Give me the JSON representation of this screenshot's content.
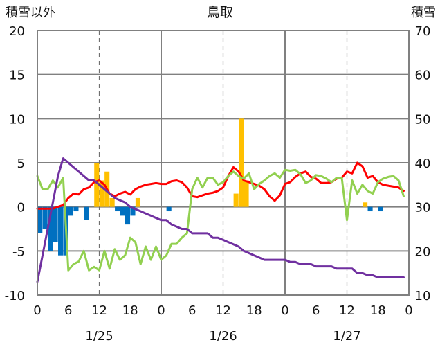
{
  "chart_data": {
    "type": "bar+line",
    "title": "鳥取",
    "left_axis_title": "積雪以外",
    "right_axis_title": "積雪",
    "y_left": {
      "min": -10,
      "max": 20,
      "ticks": [
        "-10",
        "-5",
        "0",
        "5",
        "10",
        "15",
        "20"
      ]
    },
    "y_right": {
      "min": 10,
      "max": 70,
      "ticks": [
        "10",
        "20",
        "30",
        "40",
        "50",
        "60",
        "70"
      ]
    },
    "x": {
      "min": 0,
      "max": 72,
      "step_hours": 1
    },
    "x_tick_labels": [
      {
        "h": 0,
        "label": "0"
      },
      {
        "h": 6,
        "label": "6"
      },
      {
        "h": 12,
        "label": "12"
      },
      {
        "h": 18,
        "label": "18"
      },
      {
        "h": 24,
        "label": "0"
      },
      {
        "h": 30,
        "label": "6"
      },
      {
        "h": 36,
        "label": "12"
      },
      {
        "h": 42,
        "label": "18"
      },
      {
        "h": 48,
        "label": "0"
      },
      {
        "h": 54,
        "label": "6"
      },
      {
        "h": 60,
        "label": "12"
      },
      {
        "h": 66,
        "label": "18"
      },
      {
        "h": 72,
        "label": "0"
      }
    ],
    "date_labels": [
      {
        "h": 12,
        "label": "1/25"
      },
      {
        "h": 36,
        "label": "1/26"
      },
      {
        "h": 60,
        "label": "1/27"
      }
    ],
    "gridlines": {
      "solid_at_hours": [
        24,
        48
      ],
      "dashed_at_hours": [
        12,
        36,
        60
      ],
      "solid_at_values": [
        -5,
        0,
        5,
        10,
        15
      ]
    },
    "colors": {
      "bars_positive": "#FFC000",
      "bars_negative": "#0070C0",
      "red_line": "#FF0000",
      "green_line": "#92D050",
      "purple_line": "#7030A0",
      "grid": "#808080",
      "frame": "#808080"
    },
    "series": [
      {
        "kind": "bar",
        "axis": "left",
        "values": [
          [
            0,
            -3
          ],
          [
            1,
            -2.5
          ],
          [
            2,
            -5
          ],
          [
            3,
            -4
          ],
          [
            4,
            -5.5
          ],
          [
            5,
            -5.5
          ],
          [
            6,
            -1
          ],
          [
            7,
            -0.5
          ],
          [
            8,
            0
          ],
          [
            9,
            -1.5
          ],
          [
            10,
            0
          ],
          [
            11,
            5
          ],
          [
            12,
            3
          ],
          [
            13,
            4
          ],
          [
            14,
            1
          ],
          [
            15,
            -0.5
          ],
          [
            16,
            -1
          ],
          [
            17,
            -2
          ],
          [
            18,
            -1
          ],
          [
            19,
            1
          ],
          [
            20,
            0
          ],
          [
            25,
            -0.5
          ],
          [
            38,
            1.5
          ],
          [
            39,
            10
          ],
          [
            40,
            3
          ],
          [
            63,
            0.5
          ],
          [
            64,
            -0.5
          ],
          [
            66,
            -0.5
          ]
        ]
      },
      {
        "kind": "line",
        "color_key": "red_line",
        "axis": "left",
        "values": [
          [
            0,
            -0.2
          ],
          [
            3,
            -0.2
          ],
          [
            5,
            0.2
          ],
          [
            6,
            1
          ],
          [
            7,
            1.5
          ],
          [
            8,
            1.4
          ],
          [
            9,
            2
          ],
          [
            10,
            2.2
          ],
          [
            11,
            2.8
          ],
          [
            12,
            3
          ],
          [
            13,
            2.5
          ],
          [
            14,
            1.5
          ],
          [
            15,
            1.2
          ],
          [
            16,
            1.5
          ],
          [
            17,
            1.7
          ],
          [
            18,
            1.4
          ],
          [
            19,
            2
          ],
          [
            20,
            2.3
          ],
          [
            21,
            2.5
          ],
          [
            22,
            2.6
          ],
          [
            23,
            2.7
          ],
          [
            24,
            2.6
          ],
          [
            25,
            2.6
          ],
          [
            26,
            2.9
          ],
          [
            27,
            3
          ],
          [
            28,
            2.8
          ],
          [
            29,
            2.2
          ],
          [
            30,
            1.2
          ],
          [
            31,
            1.1
          ],
          [
            32,
            1.3
          ],
          [
            33,
            1.5
          ],
          [
            34,
            1.6
          ],
          [
            35,
            1.8
          ],
          [
            36,
            2.2
          ],
          [
            37,
            3.5
          ],
          [
            38,
            4.5
          ],
          [
            39,
            4
          ],
          [
            40,
            3
          ],
          [
            41,
            2.8
          ],
          [
            42,
            2.6
          ],
          [
            43,
            2.4
          ],
          [
            44,
            2
          ],
          [
            45,
            1.2
          ],
          [
            46,
            0.7
          ],
          [
            47,
            1.3
          ],
          [
            48,
            2.6
          ],
          [
            49,
            2.8
          ],
          [
            50,
            3.4
          ],
          [
            51,
            3.8
          ],
          [
            52,
            4
          ],
          [
            53,
            3.4
          ],
          [
            54,
            3.2
          ],
          [
            55,
            2.7
          ],
          [
            56,
            2.7
          ],
          [
            57,
            2.8
          ],
          [
            58,
            3.2
          ],
          [
            59,
            3.3
          ],
          [
            60,
            4
          ],
          [
            61,
            3.8
          ],
          [
            62,
            5
          ],
          [
            63,
            4.6
          ],
          [
            64,
            3.3
          ],
          [
            65,
            3.5
          ],
          [
            66,
            2.8
          ],
          [
            67,
            2.5
          ],
          [
            68,
            2.4
          ],
          [
            69,
            2.3
          ],
          [
            70,
            2.2
          ],
          [
            71,
            1.8
          ]
        ]
      },
      {
        "kind": "line",
        "color_key": "green_line",
        "axis": "left",
        "values": [
          [
            0,
            3.5
          ],
          [
            1,
            2
          ],
          [
            2,
            2
          ],
          [
            3,
            3
          ],
          [
            4,
            2.2
          ],
          [
            5,
            3.3
          ],
          [
            6,
            -7.2
          ],
          [
            7,
            -6.5
          ],
          [
            8,
            -6.2
          ],
          [
            9,
            -5
          ],
          [
            10,
            -7.2
          ],
          [
            11,
            -6.8
          ],
          [
            12,
            -7.2
          ],
          [
            13,
            -5
          ],
          [
            14,
            -7
          ],
          [
            15,
            -4.8
          ],
          [
            16,
            -6
          ],
          [
            17,
            -5.5
          ],
          [
            18,
            -3.5
          ],
          [
            19,
            -4
          ],
          [
            20,
            -6.5
          ],
          [
            21,
            -4.5
          ],
          [
            22,
            -6
          ],
          [
            23,
            -4.5
          ],
          [
            24,
            -6
          ],
          [
            25,
            -5.5
          ],
          [
            26,
            -4.2
          ],
          [
            27,
            -4.2
          ],
          [
            28,
            -3.5
          ],
          [
            29,
            -3
          ],
          [
            30,
            2
          ],
          [
            31,
            3.3
          ],
          [
            32,
            2.2
          ],
          [
            33,
            3.3
          ],
          [
            34,
            3.3
          ],
          [
            35,
            2.5
          ],
          [
            36,
            2.8
          ],
          [
            37,
            3.5
          ],
          [
            38,
            4
          ],
          [
            39,
            3.5
          ],
          [
            40,
            3.2
          ],
          [
            41,
            3.8
          ],
          [
            42,
            2
          ],
          [
            43,
            2.6
          ],
          [
            44,
            3
          ],
          [
            45,
            3.5
          ],
          [
            46,
            3.8
          ],
          [
            47,
            3.3
          ],
          [
            48,
            4.2
          ],
          [
            49,
            4.1
          ],
          [
            50,
            4.2
          ],
          [
            51,
            3.7
          ],
          [
            52,
            2.7
          ],
          [
            53,
            3
          ],
          [
            54,
            3.6
          ],
          [
            55,
            3.5
          ],
          [
            56,
            3.2
          ],
          [
            57,
            2.8
          ],
          [
            58,
            3.3
          ],
          [
            59,
            3.3
          ],
          [
            60,
            -1.5
          ],
          [
            61,
            3
          ],
          [
            62,
            1.5
          ],
          [
            63,
            2.5
          ],
          [
            64,
            1.8
          ],
          [
            65,
            1.5
          ],
          [
            66,
            2.8
          ],
          [
            67,
            3.2
          ],
          [
            68,
            3.4
          ],
          [
            69,
            3.5
          ],
          [
            70,
            3
          ],
          [
            71,
            1.2
          ]
        ]
      },
      {
        "kind": "line",
        "color_key": "purple_line",
        "axis": "right",
        "values": [
          [
            0,
            13
          ],
          [
            1,
            19
          ],
          [
            2,
            25
          ],
          [
            3,
            31
          ],
          [
            4,
            37
          ],
          [
            5,
            41
          ],
          [
            6,
            40
          ],
          [
            7,
            39
          ],
          [
            8,
            38
          ],
          [
            9,
            37
          ],
          [
            10,
            36
          ],
          [
            11,
            36
          ],
          [
            12,
            35
          ],
          [
            13,
            34
          ],
          [
            14,
            33
          ],
          [
            15,
            32
          ],
          [
            16,
            31.5
          ],
          [
            17,
            31
          ],
          [
            18,
            30
          ],
          [
            19,
            29.5
          ],
          [
            20,
            29
          ],
          [
            21,
            28.5
          ],
          [
            22,
            28
          ],
          [
            23,
            27.5
          ],
          [
            24,
            27
          ],
          [
            25,
            27
          ],
          [
            26,
            26
          ],
          [
            27,
            25.5
          ],
          [
            28,
            25
          ],
          [
            29,
            25
          ],
          [
            30,
            24
          ],
          [
            31,
            24
          ],
          [
            32,
            24
          ],
          [
            33,
            24
          ],
          [
            34,
            23
          ],
          [
            35,
            23
          ],
          [
            36,
            22.5
          ],
          [
            37,
            22
          ],
          [
            38,
            21.5
          ],
          [
            39,
            21
          ],
          [
            40,
            20
          ],
          [
            41,
            19.5
          ],
          [
            42,
            19
          ],
          [
            43,
            18.5
          ],
          [
            44,
            18
          ],
          [
            45,
            18
          ],
          [
            46,
            18
          ],
          [
            47,
            18
          ],
          [
            48,
            18
          ],
          [
            49,
            17.5
          ],
          [
            50,
            17.5
          ],
          [
            51,
            17
          ],
          [
            52,
            17
          ],
          [
            53,
            17
          ],
          [
            54,
            16.5
          ],
          [
            55,
            16.5
          ],
          [
            56,
            16.5
          ],
          [
            57,
            16.5
          ],
          [
            58,
            16
          ],
          [
            59,
            16
          ],
          [
            60,
            16
          ],
          [
            61,
            16
          ],
          [
            62,
            15
          ],
          [
            63,
            15
          ],
          [
            64,
            14.5
          ],
          [
            65,
            14.5
          ],
          [
            66,
            14
          ],
          [
            67,
            14
          ],
          [
            68,
            14
          ],
          [
            69,
            14
          ],
          [
            70,
            14
          ],
          [
            71,
            14
          ]
        ]
      }
    ]
  }
}
